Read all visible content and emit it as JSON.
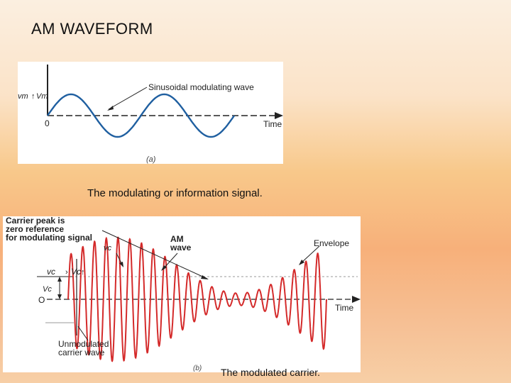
{
  "slide": {
    "title": "AM  WAVEFORM",
    "caption_modulating": "The modulating or information signal.",
    "caption_modulated": "The modulated carrier."
  },
  "figure_a": {
    "y_axis_label": "vm",
    "y_peak_label": "Vm",
    "origin_label": "0",
    "x_axis_label": "Time",
    "annotation": "Sinusoidal modulating wave",
    "panel_label": "(a)",
    "wave_color": "#1f5fa0"
  },
  "figure_b": {
    "carrier_peak_note": [
      "Carrier peak is",
      "zero reference",
      "for modulating signal"
    ],
    "vc_label": "vc",
    "am_wave_label": [
      "AM",
      "wave"
    ],
    "envelope_label": "Envelope",
    "axis_vc_left": "vc",
    "axis_vc_right": "Vc",
    "vc_marker": "Vc",
    "origin_label": "O",
    "x_axis_label": "Time",
    "unmodulated_note": [
      "Unmodulated",
      "carrier wave"
    ],
    "panel_label": "(b)",
    "wave_color": "#d42a2a"
  }
}
